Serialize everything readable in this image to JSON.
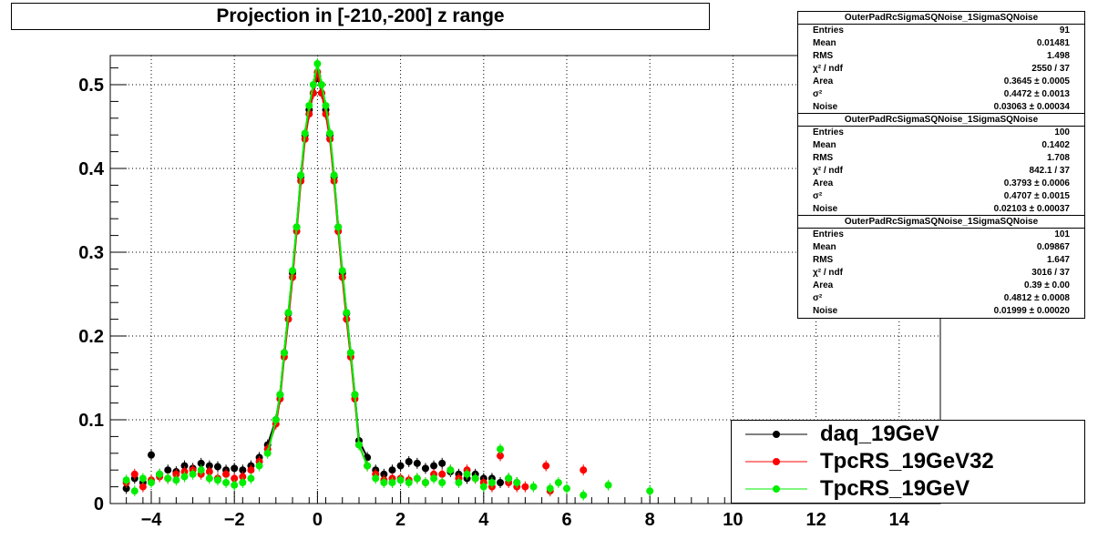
{
  "title": "Projection in [-210,-200] z range",
  "stats": [
    {
      "name": "OuterPadRcSigmaSQNoise_1SigmaSQNoise",
      "rows": [
        {
          "label": "Entries",
          "value": "91"
        },
        {
          "label": "Mean",
          "value": "0.01481"
        },
        {
          "label": "RMS",
          "value": "1.498"
        },
        {
          "label": "χ² / ndf",
          "value": "2550 / 37"
        },
        {
          "label": "Area",
          "value": "0.3645 ± 0.0005"
        },
        {
          "label": "σ²",
          "value": "0.4472 ± 0.0013"
        },
        {
          "label": "Noise",
          "value": "0.03063 ± 0.00034"
        }
      ]
    },
    {
      "name": "OuterPadRcSigmaSQNoise_1SigmaSQNoise",
      "rows": [
        {
          "label": "Entries",
          "value": "100"
        },
        {
          "label": "Mean",
          "value": "0.1402"
        },
        {
          "label": "RMS",
          "value": "1.708"
        },
        {
          "label": "χ² / ndf",
          "value": "842.1 / 37"
        },
        {
          "label": "Area",
          "value": "0.3793 ± 0.0006"
        },
        {
          "label": "σ²",
          "value": "0.4707 ± 0.0015"
        },
        {
          "label": "Noise",
          "value": "0.02103 ± 0.00037"
        }
      ]
    },
    {
      "name": "OuterPadRcSigmaSQNoise_1SigmaSQNoise",
      "rows": [
        {
          "label": "Entries",
          "value": "101"
        },
        {
          "label": "Mean",
          "value": "0.09867"
        },
        {
          "label": "RMS",
          "value": "1.647"
        },
        {
          "label": "χ² / ndf",
          "value": "3016 / 37"
        },
        {
          "label": "Area",
          "value": "0.39 ± 0.00"
        },
        {
          "label": "σ²",
          "value": "0.4812 ± 0.0008"
        },
        {
          "label": "Noise",
          "value": "0.01999 ± 0.00020"
        }
      ]
    }
  ],
  "legend": [
    {
      "label": "daq_19GeV",
      "color": "#000000"
    },
    {
      "label": "TpcRS_19GeV32",
      "color": "#ff0000"
    },
    {
      "label": "TpcRS_19GeV",
      "color": "#00ee00"
    }
  ],
  "chart_data": {
    "type": "scatter",
    "title": "Projection in [-210,-200] z range",
    "xlabel": "",
    "ylabel": "",
    "xlim": [
      -5,
      15
    ],
    "ylim": [
      0,
      0.535
    ],
    "grid": true,
    "legend_position": "bottom-right",
    "x_ticks": [
      "−4",
      "−2",
      "0",
      "2",
      "4",
      "6",
      "8",
      "10",
      "12",
      "14"
    ],
    "x_tick_values": [
      -4,
      -2,
      0,
      2,
      4,
      6,
      8,
      10,
      12,
      14
    ],
    "y_ticks": [
      "0",
      "0.1",
      "0.2",
      "0.3",
      "0.4",
      "0.5"
    ],
    "y_tick_values": [
      0,
      0.1,
      0.2,
      0.3,
      0.4,
      0.5
    ],
    "series": [
      {
        "name": "daq_19GeV",
        "color": "#000000",
        "x": [
          -4.6,
          -4.4,
          -4.2,
          -4.0,
          -3.8,
          -3.6,
          -3.4,
          -3.2,
          -3.0,
          -2.8,
          -2.6,
          -2.4,
          -2.2,
          -2.0,
          -1.8,
          -1.6,
          -1.4,
          -1.2,
          -1.0,
          -0.9,
          -0.8,
          -0.7,
          -0.6,
          -0.5,
          -0.4,
          -0.3,
          -0.2,
          -0.1,
          0.0,
          0.1,
          0.2,
          0.3,
          0.4,
          0.5,
          0.6,
          0.7,
          0.8,
          0.9,
          1.0,
          1.2,
          1.4,
          1.6,
          1.8,
          2.0,
          2.2,
          2.4,
          2.6,
          2.8,
          3.0,
          3.2,
          3.4,
          3.6,
          3.8,
          4.0,
          4.2,
          4.4,
          4.6,
          4.8
        ],
        "y": [
          0.018,
          0.03,
          0.025,
          0.058,
          0.035,
          0.04,
          0.038,
          0.045,
          0.042,
          0.048,
          0.045,
          0.044,
          0.04,
          0.042,
          0.04,
          0.045,
          0.055,
          0.07,
          0.1,
          0.13,
          0.18,
          0.227,
          0.275,
          0.33,
          0.39,
          0.44,
          0.47,
          0.49,
          0.51,
          0.49,
          0.47,
          0.44,
          0.39,
          0.33,
          0.275,
          0.227,
          0.18,
          0.13,
          0.075,
          0.055,
          0.04,
          0.035,
          0.04,
          0.045,
          0.05,
          0.048,
          0.042,
          0.045,
          0.048,
          0.038,
          0.035,
          0.03,
          0.035,
          0.03,
          0.03,
          0.025,
          0.03,
          0.025
        ]
      },
      {
        "name": "TpcRS_19GeV32",
        "color": "#ff0000",
        "x": [
          -4.6,
          -4.4,
          -4.2,
          -4.0,
          -3.8,
          -3.6,
          -3.4,
          -3.2,
          -3.0,
          -2.8,
          -2.6,
          -2.4,
          -2.2,
          -2.0,
          -1.8,
          -1.6,
          -1.4,
          -1.2,
          -1.0,
          -0.9,
          -0.8,
          -0.7,
          -0.6,
          -0.5,
          -0.4,
          -0.3,
          -0.2,
          -0.1,
          0.0,
          0.1,
          0.2,
          0.3,
          0.4,
          0.5,
          0.6,
          0.7,
          0.8,
          0.9,
          1.0,
          1.2,
          1.4,
          1.6,
          1.8,
          2.0,
          2.2,
          2.4,
          2.6,
          2.8,
          3.0,
          3.2,
          3.4,
          3.6,
          3.8,
          4.0,
          4.2,
          4.4,
          4.6,
          4.8,
          5.0,
          5.5,
          5.6,
          6.4
        ],
        "y": [
          0.025,
          0.035,
          0.02,
          0.028,
          0.032,
          0.03,
          0.035,
          0.038,
          0.04,
          0.035,
          0.038,
          0.03,
          0.035,
          0.03,
          0.032,
          0.04,
          0.05,
          0.065,
          0.095,
          0.125,
          0.175,
          0.22,
          0.27,
          0.325,
          0.385,
          0.435,
          0.465,
          0.49,
          0.515,
          0.49,
          0.465,
          0.435,
          0.385,
          0.325,
          0.27,
          0.22,
          0.175,
          0.125,
          0.07,
          0.045,
          0.035,
          0.028,
          0.03,
          0.03,
          0.028,
          0.03,
          0.025,
          0.035,
          0.035,
          0.04,
          0.03,
          0.04,
          0.03,
          0.025,
          0.02,
          0.057,
          0.025,
          0.02,
          0.02,
          0.045,
          0.015,
          0.04
        ]
      },
      {
        "name": "TpcRS_19GeV",
        "color": "#00ee00",
        "x": [
          -4.6,
          -4.4,
          -4.2,
          -4.0,
          -3.8,
          -3.6,
          -3.4,
          -3.2,
          -3.0,
          -2.8,
          -2.6,
          -2.4,
          -2.2,
          -2.0,
          -1.8,
          -1.6,
          -1.4,
          -1.2,
          -1.0,
          -0.9,
          -0.8,
          -0.7,
          -0.6,
          -0.5,
          -0.4,
          -0.3,
          -0.2,
          -0.1,
          0.0,
          0.1,
          0.2,
          0.3,
          0.4,
          0.5,
          0.6,
          0.7,
          0.8,
          0.9,
          1.0,
          1.2,
          1.4,
          1.6,
          1.8,
          2.0,
          2.2,
          2.4,
          2.6,
          2.8,
          3.0,
          3.2,
          3.4,
          3.6,
          3.8,
          4.0,
          4.2,
          4.4,
          4.6,
          4.8,
          5.2,
          5.6,
          5.8,
          6.0,
          6.4,
          7.0,
          8.0
        ],
        "y": [
          0.028,
          0.015,
          0.03,
          0.025,
          0.035,
          0.03,
          0.028,
          0.032,
          0.035,
          0.04,
          0.03,
          0.028,
          0.025,
          0.022,
          0.025,
          0.03,
          0.045,
          0.06,
          0.1,
          0.13,
          0.18,
          0.228,
          0.278,
          0.33,
          0.392,
          0.442,
          0.475,
          0.5,
          0.525,
          0.5,
          0.475,
          0.442,
          0.392,
          0.33,
          0.278,
          0.228,
          0.18,
          0.13,
          0.07,
          0.045,
          0.03,
          0.025,
          0.025,
          0.028,
          0.025,
          0.03,
          0.025,
          0.03,
          0.025,
          0.04,
          0.025,
          0.035,
          0.03,
          0.02,
          0.025,
          0.065,
          0.03,
          0.025,
          0.02,
          0.018,
          0.025,
          0.018,
          0.01,
          0.022,
          0.015
        ]
      }
    ]
  }
}
